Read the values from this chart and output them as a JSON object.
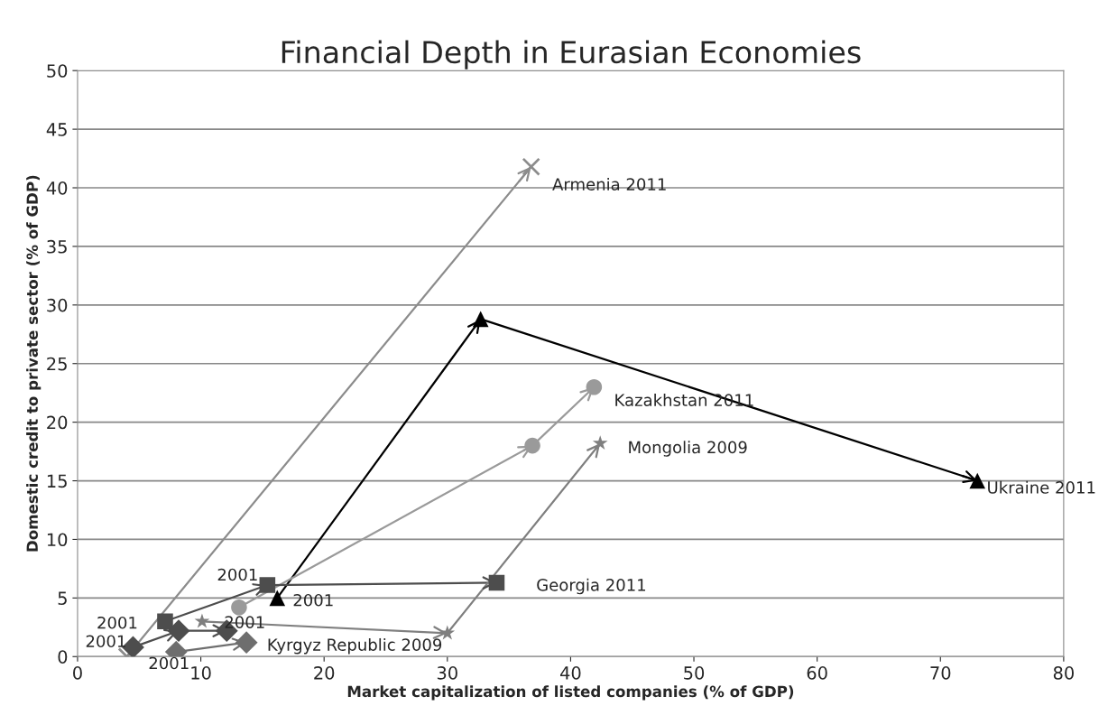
{
  "chart_data": {
    "type": "line",
    "title": "Financial Depth in Eurasian Economies",
    "xlabel": "Market capitalization of listed companies (% of GDP)",
    "ylabel": "Domestic credit to private sector (% of GDP)",
    "xlim": [
      0,
      80
    ],
    "xticks": [
      0,
      10,
      20,
      30,
      40,
      50,
      60,
      70,
      80
    ],
    "ylim": [
      0,
      50
    ],
    "yticks": [
      0,
      5,
      10,
      15,
      20,
      25,
      30,
      35,
      40,
      45,
      50
    ],
    "grid": "y",
    "legend": false,
    "series": [
      {
        "color": "#8c8c8c",
        "marker": "cross",
        "x": [
          4,
          36.8
        ],
        "values": [
          0,
          41.8
        ]
      },
      {
        "color": "#000000",
        "marker": "triangle",
        "x": [
          16.2,
          32.7,
          73
        ],
        "values": [
          5,
          28.8,
          15
        ]
      },
      {
        "color": "#9a9a9a",
        "marker": "circle",
        "x": [
          13.1,
          36.9,
          41.9
        ],
        "values": [
          4.2,
          18,
          23
        ]
      },
      {
        "color": "#4d4d4d",
        "marker": "square",
        "x": [
          7.1,
          15.4,
          34
        ],
        "values": [
          3,
          6.1,
          6.3
        ]
      },
      {
        "color": "#7f7f7f",
        "marker": "star",
        "x": [
          10.1,
          30,
          42.4
        ],
        "values": [
          3,
          2,
          18.2
        ]
      },
      {
        "color": "#6e6e6e",
        "marker": "diamond",
        "x": [
          8,
          13.7
        ],
        "values": [
          0.4,
          1.2
        ]
      },
      {
        "color": "#4d4d4d",
        "marker": "diamond",
        "x": [
          4.5,
          8.2,
          12.1
        ],
        "values": [
          0.8,
          2.2,
          2.2
        ]
      }
    ],
    "annotations": [
      {
        "text": "Armenia 2011",
        "x": 36.8,
        "y": 41.8
      },
      {
        "text": "Ukraine 2011",
        "x": 73,
        "y": 15
      },
      {
        "text": "Kazakhstan 2011",
        "x": 41.9,
        "y": 23
      },
      {
        "text": "Mongolia 2009",
        "x": 42.4,
        "y": 18.2
      },
      {
        "text": "Georgia 2011",
        "x": 34,
        "y": 6.3
      },
      {
        "text": "Kyrgyz Republic 2009",
        "x": 13.7,
        "y": 1.2
      },
      {
        "text": "2001",
        "x": 15.4,
        "y": 6.1
      },
      {
        "text": "2001",
        "x": 16.2,
        "y": 5
      },
      {
        "text": "2001",
        "x": 7.1,
        "y": 3
      },
      {
        "text": "2001",
        "x": 4.5,
        "y": 0.8
      },
      {
        "text": "2001",
        "x": 8,
        "y": 0.4
      },
      {
        "text": "2001",
        "x": 12.1,
        "y": 2.2
      }
    ]
  }
}
